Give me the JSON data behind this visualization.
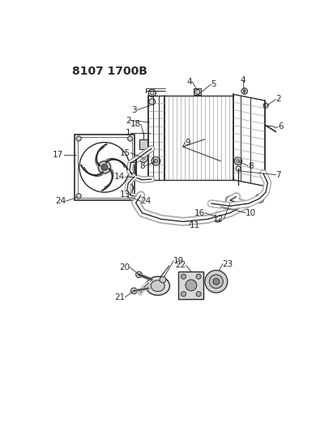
{
  "title": "8107 1700B",
  "bg_color": "#ffffff",
  "line_color": "#2a2a2a",
  "title_fontsize": 10,
  "label_fontsize": 7.5
}
